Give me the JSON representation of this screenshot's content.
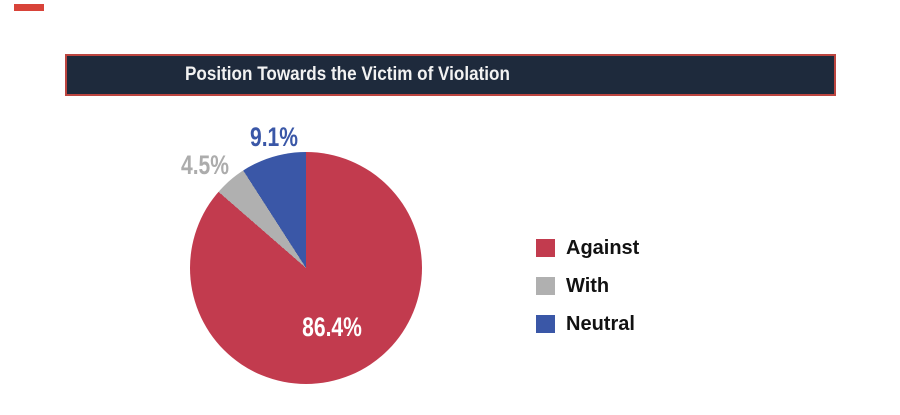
{
  "page": {
    "background": "#FFFFFF"
  },
  "decor": {
    "top_left_mark_color": "#D84339"
  },
  "header": {
    "title": "Position Towards the Victim of Violation",
    "bg": "#1E2A3C",
    "border_color": "#BC4540",
    "text_color": "#F2F2F2"
  },
  "chart_data": {
    "type": "pie",
    "title": "Position Towards the Victim of Violation",
    "categories": [
      "Against",
      "With",
      "Neutral"
    ],
    "values": [
      86.4,
      4.5,
      9.1
    ],
    "unit": "%",
    "colors": [
      "#C23B4E",
      "#B0B0B0",
      "#3A57A7"
    ],
    "slice_labels": [
      "86.4%",
      "4.5%",
      "9.1%"
    ],
    "label_colors": [
      "#FFFFFF",
      "#ACACAC",
      "#3A57A7"
    ],
    "start_angle": "12 o'clock, clockwise",
    "legend_position": "right",
    "legend_text_color": "#121212"
  },
  "legend": {
    "items": [
      {
        "label": "Against",
        "color": "#C23B4E"
      },
      {
        "label": "With",
        "color": "#B0B0B0"
      },
      {
        "label": "Neutral",
        "color": "#3A57A7"
      }
    ]
  }
}
